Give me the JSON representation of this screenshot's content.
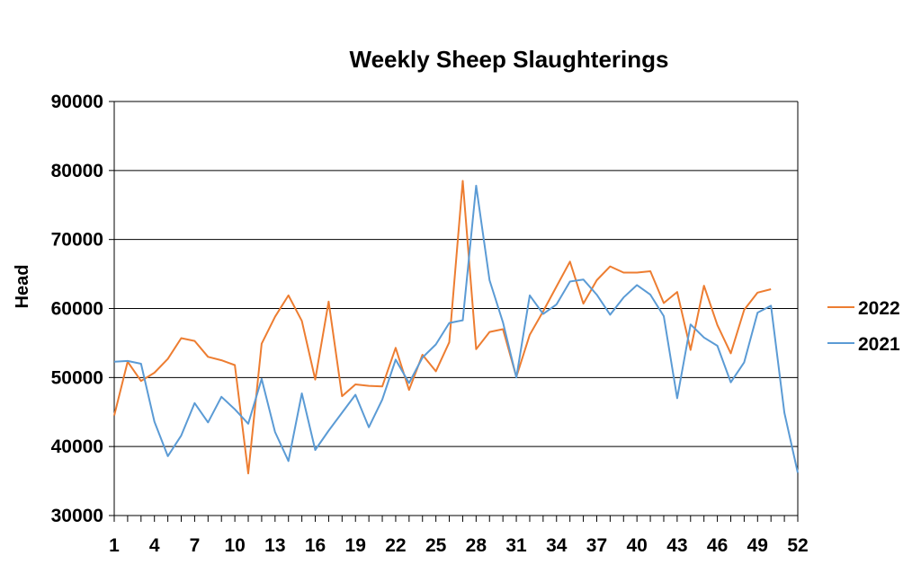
{
  "chart_data": {
    "type": "line",
    "title": "Weekly Sheep Slaughterings",
    "xlabel": "",
    "ylabel": "Head",
    "ylim": [
      30000,
      90000
    ],
    "yticks": [
      30000,
      40000,
      50000,
      60000,
      70000,
      80000,
      90000
    ],
    "xlim": [
      1,
      52
    ],
    "xticks": [
      1,
      4,
      7,
      10,
      13,
      16,
      19,
      22,
      25,
      28,
      31,
      34,
      37,
      40,
      43,
      46,
      49,
      52
    ],
    "grid": "horizontal",
    "legend_position": "right",
    "series": [
      {
        "name": "2022",
        "color": "#ED7D31",
        "x": [
          1,
          2,
          3,
          4,
          5,
          6,
          7,
          8,
          9,
          10,
          11,
          12,
          13,
          14,
          15,
          16,
          17,
          18,
          19,
          20,
          21,
          22,
          23,
          24,
          25,
          26,
          27,
          28,
          29,
          30,
          31,
          32,
          33,
          34,
          35,
          36,
          37,
          38,
          39,
          40,
          41,
          42,
          43,
          44,
          45,
          46,
          47,
          48,
          49,
          50
        ],
        "values": [
          44500,
          52300,
          49500,
          50700,
          52700,
          55700,
          55300,
          53000,
          52500,
          51800,
          36100,
          54900,
          58800,
          61900,
          58200,
          49700,
          61000,
          47300,
          49000,
          48800,
          48700,
          54300,
          48200,
          53300,
          50900,
          55100,
          78500,
          54100,
          56600,
          57000,
          50100,
          56200,
          59600,
          63200,
          66800,
          60700,
          64100,
          66100,
          65200,
          65200,
          65400,
          60800,
          62400,
          54000,
          63300,
          57600,
          53500,
          59800,
          62300,
          62800
        ]
      },
      {
        "name": "2021",
        "color": "#5B9BD5",
        "x": [
          1,
          2,
          3,
          4,
          5,
          6,
          7,
          8,
          9,
          10,
          11,
          12,
          13,
          14,
          15,
          16,
          17,
          18,
          19,
          20,
          21,
          22,
          23,
          24,
          25,
          26,
          27,
          28,
          29,
          30,
          31,
          32,
          33,
          34,
          35,
          36,
          37,
          38,
          39,
          40,
          41,
          42,
          43,
          44,
          45,
          46,
          47,
          48,
          49,
          50,
          51,
          52
        ],
        "values": [
          52300,
          52400,
          52000,
          43600,
          38600,
          41600,
          46300,
          43500,
          47200,
          45400,
          43300,
          49800,
          42100,
          37900,
          47700,
          39500,
          42300,
          44900,
          47500,
          42800,
          46800,
          52600,
          49200,
          52900,
          54800,
          57900,
          58300,
          77800,
          64100,
          58000,
          50000,
          61900,
          59200,
          60600,
          63900,
          64200,
          62000,
          59100,
          61600,
          63400,
          62000,
          58900,
          47000,
          57700,
          55800,
          54600,
          49300,
          52200,
          59400,
          60400,
          44900,
          36200
        ]
      }
    ]
  }
}
